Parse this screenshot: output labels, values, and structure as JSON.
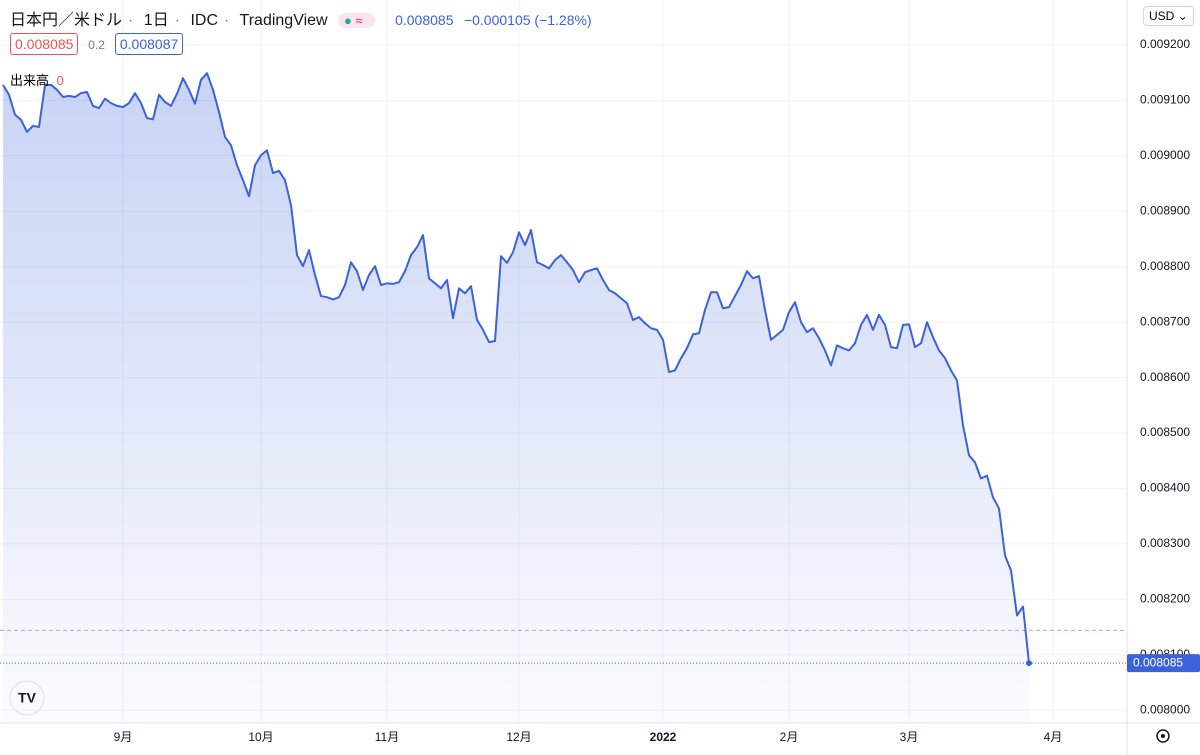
{
  "chart_data": {
    "type": "area",
    "header": {
      "title": "日本円／米ドル",
      "interval": "1日",
      "source": "IDC",
      "brand": "TradingView",
      "price": "0.008085",
      "change": "−0.000105 (−1.28%)",
      "bid": "0.008085",
      "spread": "0.2",
      "ask": "0.008087",
      "volume_label": "出来高",
      "volume": "0",
      "currency": "USD"
    },
    "color": "#3b62d9",
    "reference_line": 0.008144,
    "last_label": "0.008085",
    "ylim": [
      0.007977,
      0.009281
    ],
    "yticks": [
      {
        "value": 0.008,
        "label": "0.008000"
      },
      {
        "value": 0.0081,
        "label": "0.008100"
      },
      {
        "value": 0.0082,
        "label": "0.008200"
      },
      {
        "value": 0.0083,
        "label": "0.008300"
      },
      {
        "value": 0.0084,
        "label": "0.008400"
      },
      {
        "value": 0.0085,
        "label": "0.008500"
      },
      {
        "value": 0.0086,
        "label": "0.008600"
      },
      {
        "value": 0.0087,
        "label": "0.008700"
      },
      {
        "value": 0.0088,
        "label": "0.008800"
      },
      {
        "value": 0.0089,
        "label": "0.008900"
      },
      {
        "value": 0.009,
        "label": "0.009000"
      },
      {
        "value": 0.0091,
        "label": "0.009100"
      },
      {
        "value": 0.0092,
        "label": "0.009200"
      }
    ],
    "grid": true,
    "categories": [
      null,
      null,
      null,
      null,
      null,
      null,
      null,
      null,
      null,
      null,
      null,
      null,
      null,
      null,
      null,
      null,
      null,
      null,
      null,
      null,
      "9月",
      null,
      null,
      null,
      null,
      null,
      null,
      null,
      null,
      null,
      null,
      null,
      null,
      null,
      null,
      null,
      null,
      null,
      null,
      null,
      null,
      null,
      null,
      "10月",
      null,
      null,
      null,
      null,
      null,
      null,
      null,
      null,
      null,
      null,
      null,
      null,
      null,
      null,
      null,
      null,
      null,
      null,
      null,
      null,
      "11月",
      null,
      null,
      null,
      null,
      null,
      null,
      null,
      null,
      null,
      null,
      null,
      null,
      null,
      null,
      null,
      null,
      null,
      null,
      null,
      null,
      null,
      "12月",
      null,
      null,
      null,
      null,
      null,
      null,
      null,
      null,
      null,
      null,
      null,
      null,
      null,
      null,
      null,
      null,
      null,
      null,
      null,
      null,
      null,
      null,
      null,
      "2022",
      null,
      null,
      null,
      null,
      null,
      null,
      null,
      null,
      null,
      null,
      null,
      null,
      null,
      null,
      null,
      null,
      null,
      null,
      null,
      null,
      "2月",
      null,
      null,
      null,
      null,
      null,
      null,
      null,
      null,
      null,
      null,
      null,
      null,
      null,
      null,
      null,
      null,
      null,
      null,
      null,
      "3月",
      null,
      null,
      null,
      null,
      null,
      null,
      null,
      null,
      null,
      null,
      null,
      null,
      null,
      null,
      null,
      null,
      null,
      null,
      null,
      null,
      null,
      null,
      null,
      "4月"
    ],
    "values": [
      0.009128,
      0.00911,
      0.009074,
      0.009065,
      0.009043,
      0.009054,
      0.009052,
      0.009128,
      0.009128,
      0.009119,
      0.009106,
      0.009108,
      0.009106,
      0.009113,
      0.009115,
      0.00909,
      0.009086,
      0.009103,
      0.009095,
      0.00909,
      0.009088,
      0.009095,
      0.009113,
      0.009095,
      0.009068,
      0.009066,
      0.00911,
      0.009097,
      0.00909,
      0.009112,
      0.00914,
      0.009119,
      0.009094,
      0.009137,
      0.009149,
      0.009119,
      0.009079,
      0.009034,
      0.009019,
      0.008983,
      0.008956,
      0.008927,
      0.008983,
      0.009001,
      0.00901,
      0.008969,
      0.008973,
      0.008956,
      0.008911,
      0.008821,
      0.008801,
      0.00883,
      0.008785,
      0.008747,
      0.008745,
      0.008741,
      0.008745,
      0.008767,
      0.008808,
      0.008792,
      0.008758,
      0.008785,
      0.008801,
      0.008767,
      0.00877,
      0.008769,
      0.008772,
      0.008792,
      0.008821,
      0.008835,
      0.008857,
      0.008779,
      0.00877,
      0.008761,
      0.008776,
      0.008707,
      0.008761,
      0.008752,
      0.008765,
      0.008704,
      0.008686,
      0.008664,
      0.008666,
      0.008819,
      0.008807,
      0.008826,
      0.008862,
      0.008839,
      0.008866,
      0.008808,
      0.008803,
      0.008797,
      0.008812,
      0.008821,
      0.008808,
      0.008794,
      0.008772,
      0.00879,
      0.008794,
      0.008797,
      0.008776,
      0.008758,
      0.008752,
      0.008743,
      0.008734,
      0.008704,
      0.008709,
      0.008698,
      0.008689,
      0.008686,
      0.008668,
      0.00861,
      0.008613,
      0.008635,
      0.008653,
      0.008678,
      0.00868,
      0.008722,
      0.008754,
      0.008754,
      0.008725,
      0.008727,
      0.008747,
      0.008767,
      0.008792,
      0.008779,
      0.008783,
      0.008722,
      0.008668,
      0.008677,
      0.008686,
      0.008718,
      0.008736,
      0.0087,
      0.008682,
      0.008689,
      0.008671,
      0.008649,
      0.008622,
      0.008658,
      0.008653,
      0.008649,
      0.008662,
      0.008695,
      0.008713,
      0.008686,
      0.008713,
      0.008695,
      0.008655,
      0.008653,
      0.008695,
      0.008696,
      0.008655,
      0.008662,
      0.0087,
      0.008673,
      0.008649,
      0.008635,
      0.008613,
      0.008595,
      0.008514,
      0.00846,
      0.008447,
      0.008418,
      0.008423,
      0.008384,
      0.008364,
      0.008279,
      0.008252,
      0.008171,
      0.008187,
      0.008085,
      null,
      null,
      null,
      null
    ]
  }
}
